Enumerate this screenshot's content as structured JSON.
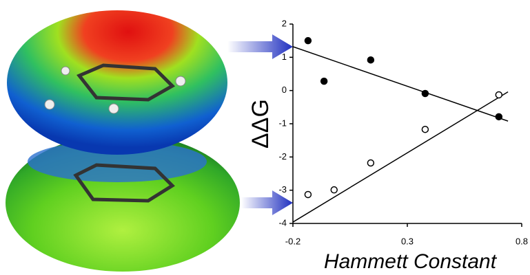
{
  "chart_data": {
    "type": "scatter",
    "x_label": "Hammett Constant",
    "y_label": "ΔΔG",
    "xlim": [
      -0.2,
      0.8
    ],
    "xticks": [
      -0.2,
      0.3,
      0.8
    ],
    "ylim": [
      -4,
      2
    ],
    "yticks": [
      2,
      1,
      0,
      -1,
      -2,
      -3,
      -4
    ],
    "series": [
      {
        "color": "#000000",
        "filled": true,
        "x": [
          -0.134,
          -0.064,
          0.14,
          0.378,
          0.7
        ],
        "y": [
          1.5,
          0.28,
          0.92,
          -0.09,
          -0.79
        ],
        "fit": {
          "x": [
            -0.2,
            0.74
          ],
          "y": [
            1.32,
            -0.92
          ]
        }
      },
      {
        "color": "#000000",
        "filled": false,
        "x": [
          -0.134,
          -0.02,
          0.14,
          0.378,
          0.7
        ],
        "y": [
          -3.13,
          -2.99,
          -2.18,
          -1.17,
          -0.13
        ],
        "fit": {
          "x": [
            -0.2,
            0.74
          ],
          "y": [
            -3.96,
            -0.04
          ]
        }
      }
    ]
  }
}
